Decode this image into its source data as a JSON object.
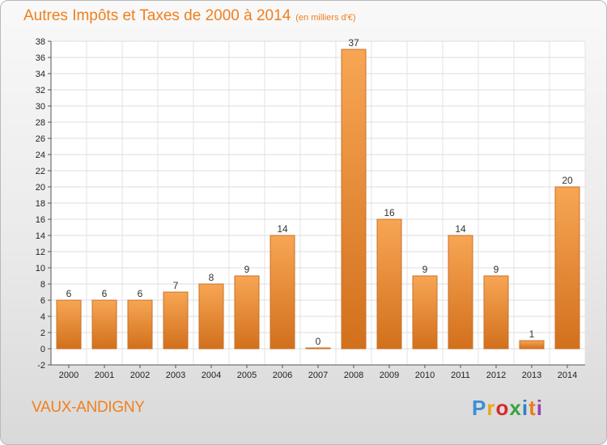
{
  "title": "Autres Impôts et Taxes de 2000 à 2014",
  "title_unit": "(en milliers d'€)",
  "commune": "VAUX-ANDIGNY",
  "logo": {
    "letters": [
      "P",
      "r",
      "o",
      "x",
      "i",
      "t",
      "i"
    ]
  },
  "colors": {
    "title": "#f07f1e",
    "bar_light": "#f7a654",
    "bar_dark": "#d2701c",
    "bar_border": "#c9702a"
  },
  "chart_data": {
    "type": "bar",
    "categories": [
      "2000",
      "2001",
      "2002",
      "2003",
      "2004",
      "2005",
      "2006",
      "2007",
      "2008",
      "2009",
      "2010",
      "2011",
      "2012",
      "2013",
      "2014"
    ],
    "values": [
      6,
      6,
      6,
      7,
      8,
      9,
      14,
      0,
      37,
      16,
      9,
      14,
      9,
      1,
      20
    ],
    "ylim": [
      -2,
      38
    ],
    "yticks": [
      -2,
      0,
      2,
      4,
      6,
      8,
      10,
      12,
      14,
      16,
      18,
      20,
      22,
      24,
      26,
      28,
      30,
      32,
      34,
      36,
      38
    ],
    "grid": true,
    "xlabel": "",
    "ylabel": ""
  }
}
